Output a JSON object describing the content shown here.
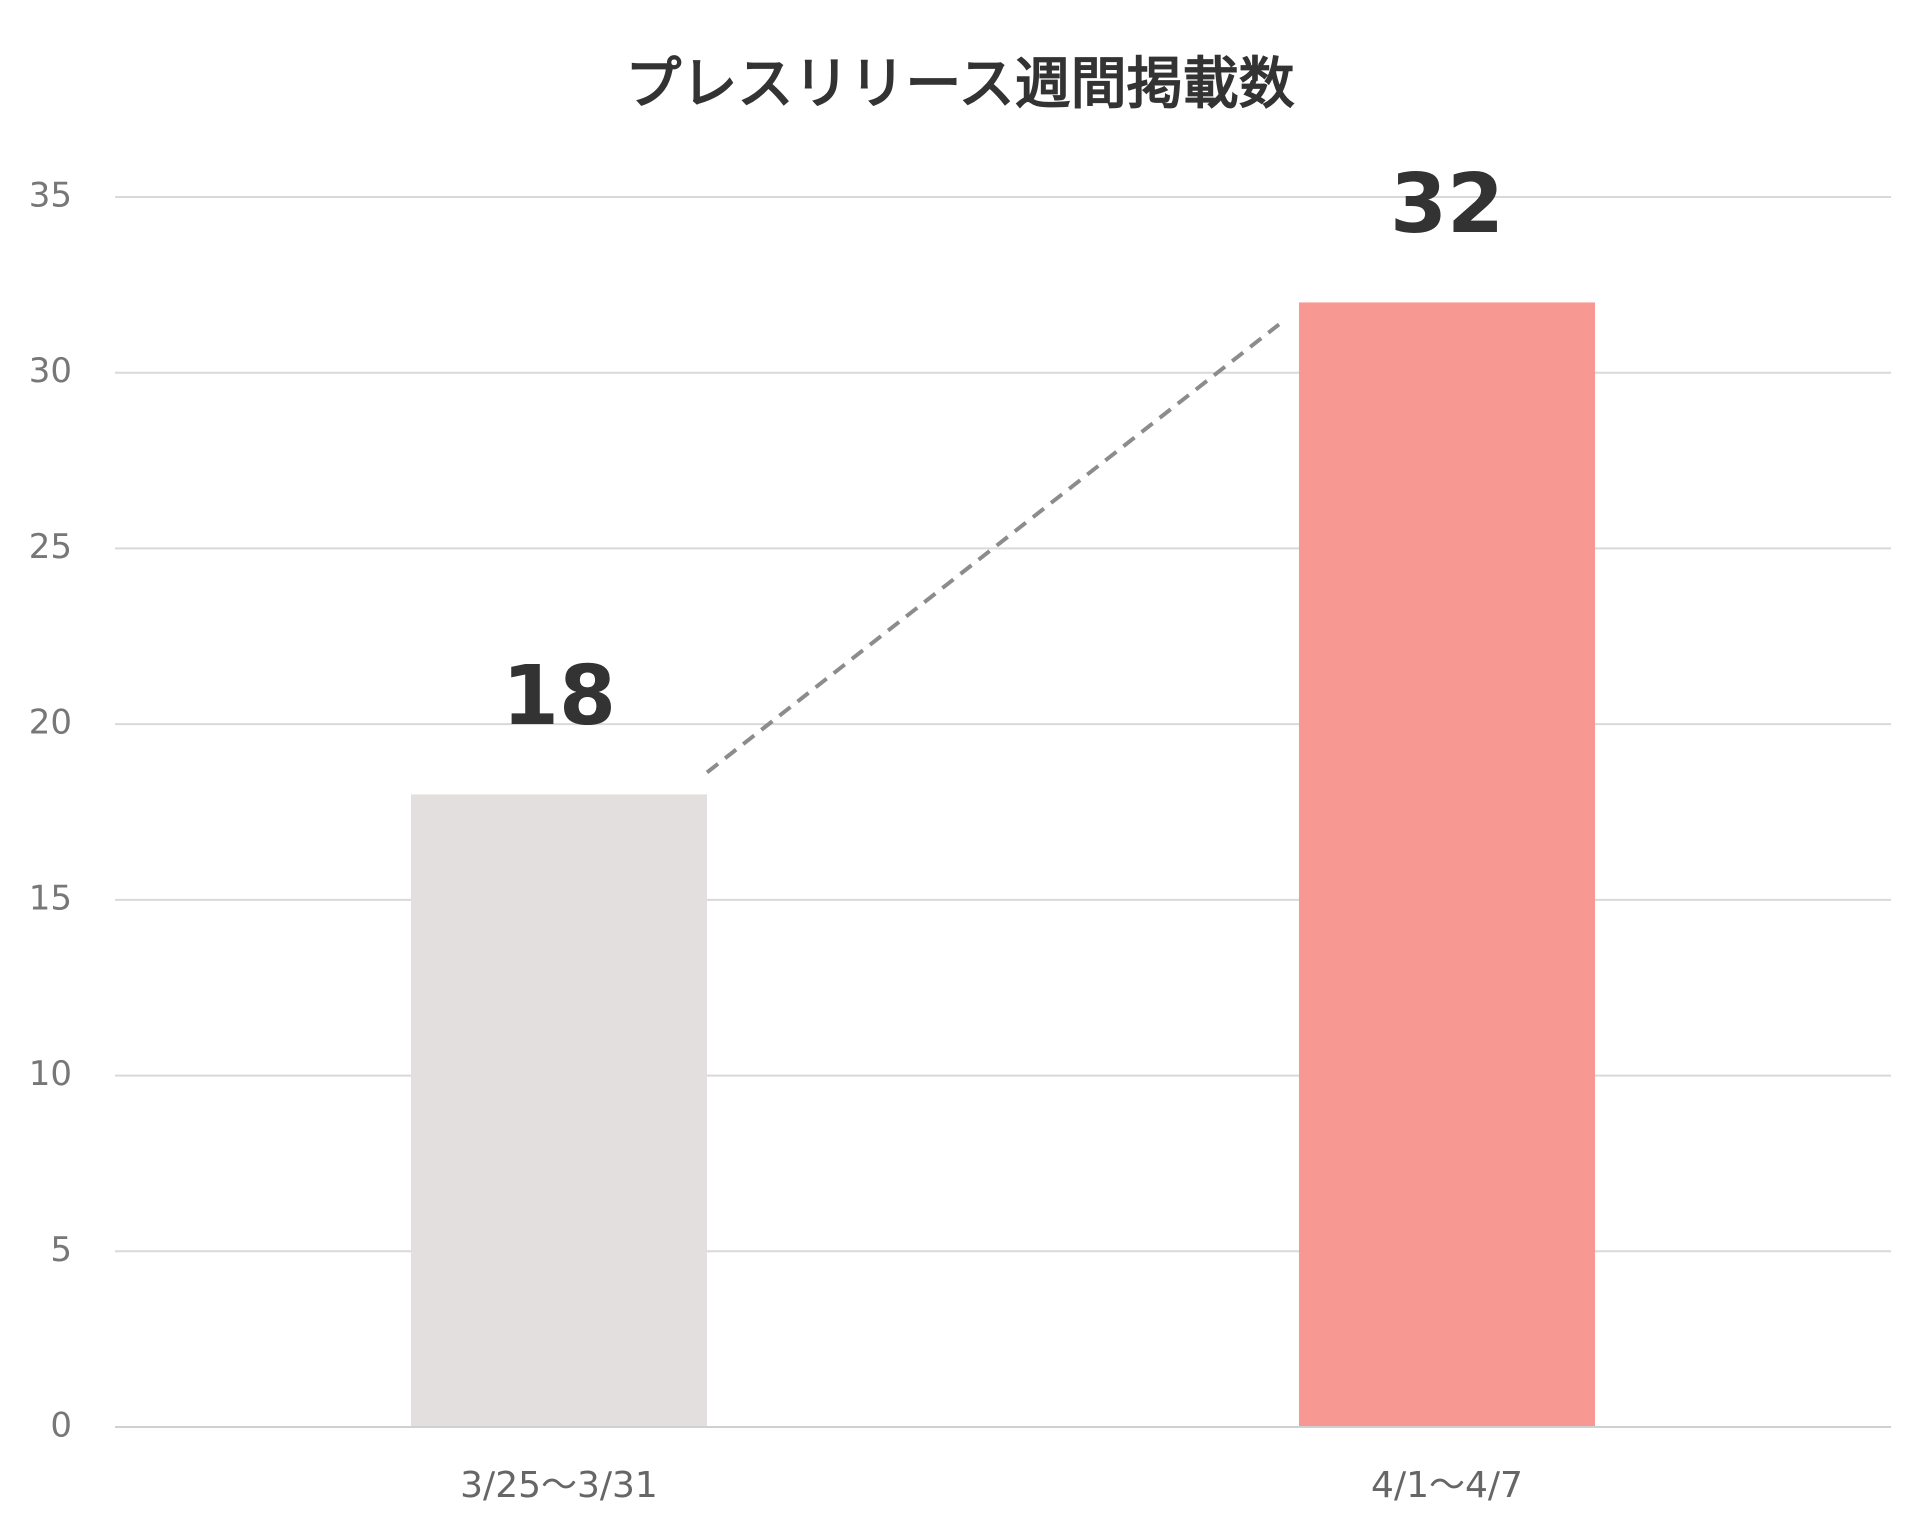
{
  "chart_data": {
    "type": "bar",
    "title": "プレスリリース週間掲載数",
    "categories": [
      "3/25〜3/31",
      "4/1〜4/7"
    ],
    "values": [
      18,
      32
    ],
    "colors": [
      "#e2dfde",
      "#f89893"
    ],
    "ylim": [
      0,
      35
    ],
    "yticks": [
      0,
      5,
      10,
      15,
      20,
      25,
      30,
      35
    ],
    "grid": true,
    "data_labels": true,
    "trend_line": true
  }
}
